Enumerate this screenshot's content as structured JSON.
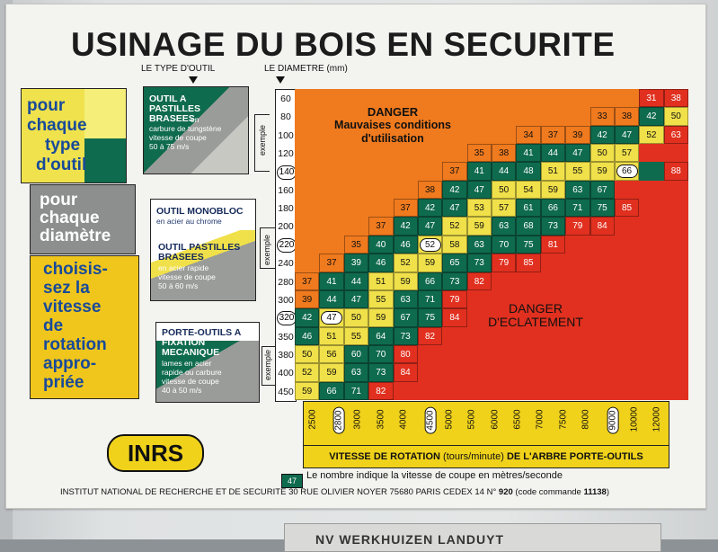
{
  "title": "USINAGE DU BOIS EN SECURITE",
  "labels": {
    "tool_type": "LE TYPE D'OUTIL",
    "diameter": "LE DIAMETRE (mm)",
    "exemple": "exemple"
  },
  "left_instructions": {
    "box1": [
      "pour",
      "chaque",
      "type",
      "d'outil"
    ],
    "box2": [
      "pour",
      "chaque",
      "diamètre"
    ],
    "box3": [
      "choisis-",
      "sez la",
      "vitesse",
      "de",
      "rotation",
      "appro-",
      "priée"
    ]
  },
  "tools": [
    {
      "bold": [
        "OUTIL A",
        "PASTILLES",
        "BRASEES"
      ],
      "note": [
        "en",
        "carbure de tungstène",
        "vitesse de coupe",
        "50 à 75 m/s"
      ]
    },
    {
      "bold": [
        "OUTIL MONOBLOC"
      ],
      "note": [
        "en acier au chrome"
      ],
      "bold2": [
        "OUTIL PASTILLES",
        "BRASEES"
      ],
      "note2": [
        "en acier rapide",
        "vitesse de coupe",
        "50 à 60 m/s"
      ]
    },
    {
      "bold": [
        "PORTE-OUTILS A",
        "FIXATION",
        "MECANIQUE"
      ],
      "note": [
        "lames en acier",
        "rapide ou carbure",
        "vitesse de coupe",
        "40 à 50 m/s"
      ]
    }
  ],
  "diameters": [
    "60",
    "80",
    "100",
    "120",
    "140",
    "160",
    "180",
    "200",
    "220",
    "240",
    "280",
    "300",
    "320",
    "350",
    "380",
    "400",
    "450"
  ],
  "highlighted_diameters": [
    "140",
    "220",
    "320"
  ],
  "speeds": [
    "2500",
    "2800",
    "3000",
    "3500",
    "4000",
    "4500",
    "5000",
    "5500",
    "6000",
    "6500",
    "7000",
    "7500",
    "8000",
    "9000",
    "10000",
    "12000"
  ],
  "highlighted_speeds": [
    "2800",
    "4500",
    "9000"
  ],
  "speed_axis_label": {
    "bold1": "VITESSE DE ROTATION",
    "unit": "(tours/minute)",
    "bold2": "DE L'ARBRE PORTE-OUTILS"
  },
  "zones": {
    "top": [
      "DANGER",
      "Mauvaises conditions",
      "d'utilisation"
    ],
    "bottom": [
      "DANGER",
      "D'ECLATEMENT"
    ]
  },
  "grid_rows": [
    {
      "d": "60",
      "cells": [
        [
          "",
          "o"
        ],
        [
          "",
          "o"
        ],
        [
          "",
          "o"
        ],
        [
          "",
          "o"
        ],
        [
          "",
          "o"
        ],
        [
          "",
          "o"
        ],
        [
          "",
          "o"
        ],
        [
          "",
          "o"
        ],
        [
          "",
          "o"
        ],
        [
          "",
          "o"
        ],
        [
          "",
          "o"
        ],
        [
          "",
          "o"
        ],
        [
          "",
          "o"
        ],
        [
          "",
          "o"
        ],
        [
          "31",
          "r"
        ],
        [
          "38",
          "r"
        ]
      ]
    },
    {
      "d": "80",
      "cells": [
        [
          "",
          "o"
        ],
        [
          "",
          "o"
        ],
        [
          "",
          "o"
        ],
        [
          "",
          "o"
        ],
        [
          "",
          "o"
        ],
        [
          "",
          "o"
        ],
        [
          "",
          "o"
        ],
        [
          "",
          "o"
        ],
        [
          "",
          "o"
        ],
        [
          "",
          "o"
        ],
        [
          "",
          "o"
        ],
        [
          "",
          "o"
        ],
        [
          "33",
          "o"
        ],
        [
          "38",
          "o"
        ],
        [
          "42",
          "g"
        ],
        [
          "50",
          "y"
        ]
      ]
    },
    {
      "d": "100",
      "cells": [
        [
          "",
          "o"
        ],
        [
          "",
          "o"
        ],
        [
          "",
          "o"
        ],
        [
          "",
          "o"
        ],
        [
          "",
          "o"
        ],
        [
          "",
          "o"
        ],
        [
          "",
          "o"
        ],
        [
          "",
          "o"
        ],
        [
          "",
          "o"
        ],
        [
          "34",
          "o"
        ],
        [
          "37",
          "o"
        ],
        [
          "39",
          "o"
        ],
        [
          "42",
          "g"
        ],
        [
          "47",
          "g"
        ],
        [
          "52",
          "y"
        ],
        [
          "63",
          "r"
        ]
      ]
    },
    {
      "d": "120",
      "cells": [
        [
          "",
          "o"
        ],
        [
          "",
          "o"
        ],
        [
          "",
          "o"
        ],
        [
          "",
          "o"
        ],
        [
          "",
          "o"
        ],
        [
          "",
          "o"
        ],
        [
          "",
          "o"
        ],
        [
          "35",
          "o"
        ],
        [
          "38",
          "o"
        ],
        [
          "41",
          "g"
        ],
        [
          "44",
          "g"
        ],
        [
          "47",
          "g"
        ],
        [
          "50",
          "y"
        ],
        [
          "57",
          "y"
        ],
        [
          "",
          "r"
        ],
        [
          "",
          "r"
        ]
      ]
    },
    {
      "d": "140",
      "cells": [
        [
          "",
          "o"
        ],
        [
          "",
          "o"
        ],
        [
          "",
          "o"
        ],
        [
          "",
          "o"
        ],
        [
          "",
          "o"
        ],
        [
          "",
          "o"
        ],
        [
          "37",
          "o"
        ],
        [
          "41",
          "g"
        ],
        [
          "44",
          "g"
        ],
        [
          "48",
          "g"
        ],
        [
          "51",
          "y"
        ],
        [
          "55",
          "y"
        ],
        [
          "59",
          "y"
        ],
        [
          "66",
          "w"
        ],
        [
          "",
          "g"
        ],
        [
          "88",
          "r"
        ]
      ]
    },
    {
      "d": "160",
      "cells": [
        [
          "",
          "o"
        ],
        [
          "",
          "o"
        ],
        [
          "",
          "o"
        ],
        [
          "",
          "o"
        ],
        [
          "",
          "o"
        ],
        [
          "38",
          "o"
        ],
        [
          "42",
          "g"
        ],
        [
          "47",
          "g"
        ],
        [
          "50",
          "y"
        ],
        [
          "54",
          "y"
        ],
        [
          "59",
          "y"
        ],
        [
          "63",
          "g"
        ],
        [
          "67",
          "g"
        ],
        [
          "",
          "r"
        ],
        [
          "",
          "r"
        ],
        [
          "",
          "r"
        ]
      ]
    },
    {
      "d": "180",
      "cells": [
        [
          "",
          "o"
        ],
        [
          "",
          "o"
        ],
        [
          "",
          "o"
        ],
        [
          "",
          "o"
        ],
        [
          "37",
          "o"
        ],
        [
          "42",
          "g"
        ],
        [
          "47",
          "g"
        ],
        [
          "53",
          "y"
        ],
        [
          "57",
          "y"
        ],
        [
          "61",
          "g"
        ],
        [
          "66",
          "g"
        ],
        [
          "71",
          "g"
        ],
        [
          "75",
          "g"
        ],
        [
          "85",
          "r"
        ],
        [
          "",
          "r"
        ],
        [
          "",
          "r"
        ]
      ]
    },
    {
      "d": "200",
      "cells": [
        [
          "",
          "o"
        ],
        [
          "",
          "o"
        ],
        [
          "",
          "o"
        ],
        [
          "37",
          "o"
        ],
        [
          "42",
          "g"
        ],
        [
          "47",
          "g"
        ],
        [
          "52",
          "y"
        ],
        [
          "59",
          "y"
        ],
        [
          "63",
          "g"
        ],
        [
          "68",
          "g"
        ],
        [
          "73",
          "g"
        ],
        [
          "79",
          "r"
        ],
        [
          "84",
          "r"
        ],
        [
          "",
          "r"
        ],
        [
          "",
          "r"
        ],
        [
          "",
          "r"
        ]
      ]
    },
    {
      "d": "220",
      "cells": [
        [
          "",
          "o"
        ],
        [
          "",
          "o"
        ],
        [
          "35",
          "o"
        ],
        [
          "40",
          "g"
        ],
        [
          "46",
          "g"
        ],
        [
          "52",
          "w"
        ],
        [
          "58",
          "y"
        ],
        [
          "63",
          "g"
        ],
        [
          "70",
          "g"
        ],
        [
          "75",
          "g"
        ],
        [
          "81",
          "r"
        ],
        [
          "",
          "r"
        ],
        [
          "",
          "r"
        ],
        [
          "",
          "r"
        ],
        [
          "",
          "r"
        ],
        [
          "",
          "r"
        ]
      ]
    },
    {
      "d": "240",
      "cells": [
        [
          "",
          "o"
        ],
        [
          "37",
          "o"
        ],
        [
          "39",
          "g"
        ],
        [
          "46",
          "g"
        ],
        [
          "52",
          "y"
        ],
        [
          "59",
          "y"
        ],
        [
          "65",
          "g"
        ],
        [
          "73",
          "g"
        ],
        [
          "79",
          "r"
        ],
        [
          "85",
          "r"
        ],
        [
          "",
          "r"
        ],
        [
          "",
          "r"
        ],
        [
          "",
          "r"
        ],
        [
          "",
          "r"
        ],
        [
          "",
          "r"
        ],
        [
          "",
          "r"
        ]
      ]
    },
    {
      "d": "280",
      "cells": [
        [
          "37",
          "o"
        ],
        [
          "41",
          "g"
        ],
        [
          "44",
          "g"
        ],
        [
          "51",
          "y"
        ],
        [
          "59",
          "y"
        ],
        [
          "66",
          "g"
        ],
        [
          "73",
          "g"
        ],
        [
          "82",
          "r"
        ],
        [
          "",
          "r"
        ],
        [
          "",
          "r"
        ],
        [
          "",
          "r"
        ],
        [
          "",
          "r"
        ],
        [
          "",
          "r"
        ],
        [
          "",
          "r"
        ],
        [
          "",
          "r"
        ],
        [
          "",
          "r"
        ]
      ]
    },
    {
      "d": "300",
      "cells": [
        [
          "39",
          "o"
        ],
        [
          "44",
          "g"
        ],
        [
          "47",
          "g"
        ],
        [
          "55",
          "y"
        ],
        [
          "63",
          "g"
        ],
        [
          "71",
          "g"
        ],
        [
          "79",
          "r"
        ],
        [
          "",
          "r"
        ],
        [
          "",
          "r"
        ],
        [
          "",
          "r"
        ],
        [
          "",
          "r"
        ],
        [
          "",
          "r"
        ],
        [
          "",
          "r"
        ],
        [
          "",
          "r"
        ],
        [
          "",
          "r"
        ],
        [
          "",
          "r"
        ]
      ]
    },
    {
      "d": "320",
      "cells": [
        [
          "42",
          "g"
        ],
        [
          "47",
          "w"
        ],
        [
          "50",
          "y"
        ],
        [
          "59",
          "y"
        ],
        [
          "67",
          "g"
        ],
        [
          "75",
          "g"
        ],
        [
          "84",
          "r"
        ],
        [
          "",
          "r"
        ],
        [
          "",
          "r"
        ],
        [
          "",
          "r"
        ],
        [
          "",
          "r"
        ],
        [
          "",
          "r"
        ],
        [
          "",
          "r"
        ],
        [
          "",
          "r"
        ],
        [
          "",
          "r"
        ],
        [
          "",
          "r"
        ]
      ]
    },
    {
      "d": "350",
      "cells": [
        [
          "46",
          "g"
        ],
        [
          "51",
          "y"
        ],
        [
          "55",
          "y"
        ],
        [
          "64",
          "g"
        ],
        [
          "73",
          "g"
        ],
        [
          "82",
          "r"
        ],
        [
          "",
          "r"
        ],
        [
          "",
          "r"
        ],
        [
          "",
          "r"
        ],
        [
          "",
          "r"
        ],
        [
          "",
          "r"
        ],
        [
          "",
          "r"
        ],
        [
          "",
          "r"
        ],
        [
          "",
          "r"
        ],
        [
          "",
          "r"
        ],
        [
          "",
          "r"
        ]
      ]
    },
    {
      "d": "380",
      "cells": [
        [
          "50",
          "y"
        ],
        [
          "56",
          "y"
        ],
        [
          "60",
          "g"
        ],
        [
          "70",
          "g"
        ],
        [
          "80",
          "r"
        ],
        [
          "",
          "r"
        ],
        [
          "",
          "r"
        ],
        [
          "",
          "r"
        ],
        [
          "",
          "r"
        ],
        [
          "",
          "r"
        ],
        [
          "",
          "r"
        ],
        [
          "",
          "r"
        ],
        [
          "",
          "r"
        ],
        [
          "",
          "r"
        ],
        [
          "",
          "r"
        ],
        [
          "",
          "r"
        ]
      ]
    },
    {
      "d": "400",
      "cells": [
        [
          "52",
          "y"
        ],
        [
          "59",
          "y"
        ],
        [
          "63",
          "g"
        ],
        [
          "73",
          "g"
        ],
        [
          "84",
          "r"
        ],
        [
          "",
          "r"
        ],
        [
          "",
          "r"
        ],
        [
          "",
          "r"
        ],
        [
          "",
          "r"
        ],
        [
          "",
          "r"
        ],
        [
          "",
          "r"
        ],
        [
          "",
          "r"
        ],
        [
          "",
          "r"
        ],
        [
          "",
          "r"
        ],
        [
          "",
          "r"
        ],
        [
          "",
          "r"
        ]
      ]
    },
    {
      "d": "450",
      "cells": [
        [
          "59",
          "y"
        ],
        [
          "66",
          "g"
        ],
        [
          "71",
          "g"
        ],
        [
          "82",
          "r"
        ],
        [
          "",
          "r"
        ],
        [
          "",
          "r"
        ],
        [
          "",
          "r"
        ],
        [
          "",
          "r"
        ],
        [
          "",
          "r"
        ],
        [
          "",
          "r"
        ],
        [
          "",
          "r"
        ],
        [
          "",
          "r"
        ],
        [
          "",
          "r"
        ],
        [
          "",
          "r"
        ],
        [
          "",
          "r"
        ],
        [
          "",
          "r"
        ]
      ]
    }
  ],
  "colors": {
    "o": "#f07a1e",
    "g": "#0f6b4d",
    "y": "#f0e04a",
    "r": "#e1301f",
    "w": "#ffffff",
    "accent": "#f0d21b"
  },
  "legend": {
    "value": "47",
    "text": "Le nombre indique la vitesse de coupe en mètres/seconde"
  },
  "logo": "INRS",
  "footer": {
    "text": "INSTITUT NATIONAL DE RECHERCHE ET DE SECURITE 30 RUE OLIVIER NOYER 75680 PARIS CEDEX 14 N°",
    "num": "920",
    "code_label": "(code commande",
    "code": "11138",
    "end": ")"
  },
  "bottom_label": "NV WERKHUIZEN LANDUYT"
}
